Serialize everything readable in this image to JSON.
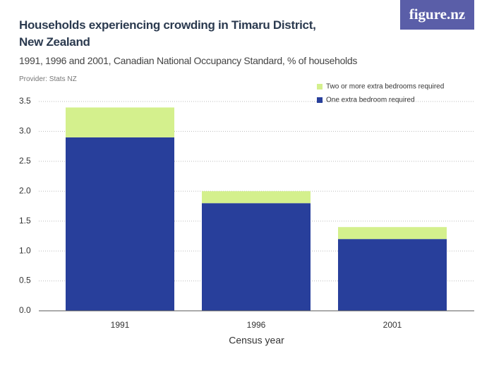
{
  "chart_data": {
    "type": "stacked-bar",
    "title": "Households experiencing crowding in Timaru District, New Zealand",
    "subtitle": "1991, 1996 and 2001, Canadian National Occupancy Standard, % of households",
    "provider": "Provider: Stats NZ",
    "logo": "figure.nz",
    "x_label": "Census year",
    "categories": [
      "1991",
      "1996",
      "2001"
    ],
    "series": [
      {
        "name": "One extra bedroom required",
        "color": "#283f9b",
        "values": [
          2.9,
          1.8,
          1.2
        ]
      },
      {
        "name": "Two or more extra bedrooms required",
        "color": "#d4f08d",
        "values": [
          0.5,
          0.2,
          0.2
        ]
      }
    ],
    "ylim": [
      0,
      3.5
    ],
    "yticks": [
      {
        "value": 0,
        "label": "0.0"
      },
      0.5,
      {
        "value": 1,
        "label": "1.0"
      },
      1.5,
      {
        "value": 2,
        "label": "2.0"
      },
      2.5,
      {
        "value": 3,
        "label": "3.0"
      },
      3.5
    ],
    "grid": true
  }
}
